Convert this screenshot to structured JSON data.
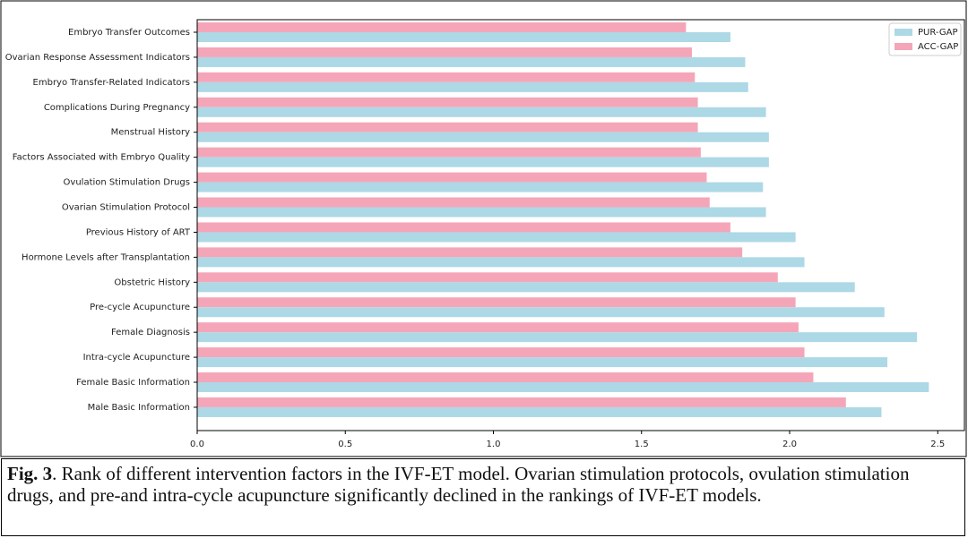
{
  "chart_data": {
    "type": "barh",
    "categories": [
      "Embryo Transfer Outcomes",
      "Ovarian Response Assessment Indicators",
      "Embryo Transfer-Related Indicators",
      "Complications During Pregnancy",
      "Menstrual History",
      "Factors Associated with Embryo Quality",
      "Ovulation Stimulation Drugs",
      "Ovarian Stimulation Protocol",
      "Previous History of ART",
      "Hormone Levels after Transplantation",
      "Obstetric History",
      "Pre-cycle Acupuncture",
      "Female Diagnosis",
      "Intra-cycle Acupuncture",
      "Female Basic Information",
      "Male Basic Information"
    ],
    "series": [
      {
        "name": "PUR-GAP",
        "color": "#add8e6",
        "values": [
          1.8,
          1.85,
          1.86,
          1.92,
          1.93,
          1.93,
          1.91,
          1.92,
          2.02,
          2.05,
          2.22,
          2.32,
          2.43,
          2.33,
          2.47,
          2.31
        ]
      },
      {
        "name": "ACC-GAP",
        "color": "#f4a6b8",
        "values": [
          1.65,
          1.67,
          1.68,
          1.69,
          1.69,
          1.7,
          1.72,
          1.73,
          1.8,
          1.84,
          1.96,
          2.02,
          2.03,
          2.05,
          2.08,
          2.19
        ]
      }
    ],
    "xlim": [
      0,
      2.59
    ],
    "xticks": [
      {
        "value": 0,
        "label": "0.0"
      },
      0.5,
      {
        "value": 1,
        "label": "1.0"
      },
      1.5,
      {
        "value": 2,
        "label": "2.0"
      },
      2.5
    ],
    "legend": "upper right",
    "caption_label": "Fig. 3",
    "caption_text": ".  Rank of different intervention factors in the IVF-ET model. Ovarian stimulation protocols, ovulation stimulation drugs, and pre-and intra-cycle acupuncture significantly declined in the rankings of IVF-ET models."
  }
}
